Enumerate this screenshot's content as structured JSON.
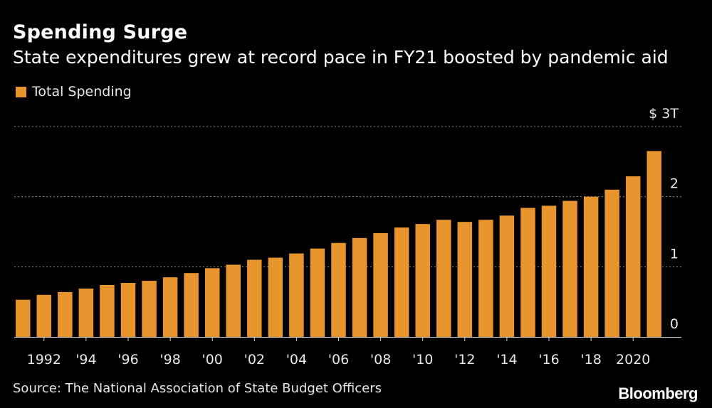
{
  "header": {
    "title": "Spending Surge",
    "subtitle": "State expenditures grew at record pace in FY21 boosted by pandemic aid"
  },
  "footer": {
    "source": "Source: The National Association of State Budget Officers",
    "brand": "Bloomberg"
  },
  "chart_data": {
    "type": "bar",
    "title": "Spending Surge",
    "subtitle": "State expenditures grew at record pace in FY21 boosted by pandemic aid",
    "xlabel": "",
    "ylabel": "",
    "bar_color": "#E8952E",
    "grid": true,
    "grid_color": "#8a8a8a",
    "legend_position": "top-left",
    "ylim": [
      0,
      3
    ],
    "y_unit": "trillion USD",
    "y_ticks": [
      {
        "value": 0,
        "label": "0"
      },
      {
        "value": 1,
        "label": "1"
      },
      {
        "value": 2,
        "label": "2"
      },
      {
        "value": 3,
        "label": "$ 3T"
      }
    ],
    "x_tick_labels": [
      {
        "year": 1992,
        "label": "1992"
      },
      {
        "year": 1994,
        "label": "'94"
      },
      {
        "year": 1996,
        "label": "'96"
      },
      {
        "year": 1998,
        "label": "'98"
      },
      {
        "year": 2000,
        "label": "'00"
      },
      {
        "year": 2002,
        "label": "'02"
      },
      {
        "year": 2004,
        "label": "'04"
      },
      {
        "year": 2006,
        "label": "'06"
      },
      {
        "year": 2008,
        "label": "'08"
      },
      {
        "year": 2010,
        "label": "'10"
      },
      {
        "year": 2012,
        "label": "'12"
      },
      {
        "year": 2014,
        "label": "'14"
      },
      {
        "year": 2016,
        "label": "'16"
      },
      {
        "year": 2018,
        "label": "'18"
      },
      {
        "year": 2020,
        "label": "2020"
      }
    ],
    "categories": [
      1991,
      1992,
      1993,
      1994,
      1995,
      1996,
      1997,
      1998,
      1999,
      2000,
      2001,
      2002,
      2003,
      2004,
      2005,
      2006,
      2007,
      2008,
      2009,
      2010,
      2011,
      2012,
      2013,
      2014,
      2015,
      2016,
      2017,
      2018,
      2019,
      2020,
      2021
    ],
    "series": [
      {
        "name": "Total Spending",
        "values": [
          0.53,
          0.6,
          0.64,
          0.69,
          0.74,
          0.77,
          0.8,
          0.85,
          0.91,
          0.98,
          1.03,
          1.1,
          1.13,
          1.19,
          1.26,
          1.34,
          1.41,
          1.48,
          1.56,
          1.61,
          1.67,
          1.64,
          1.67,
          1.73,
          1.84,
          1.87,
          1.94,
          2.0,
          2.1,
          2.29,
          2.65
        ]
      }
    ]
  }
}
